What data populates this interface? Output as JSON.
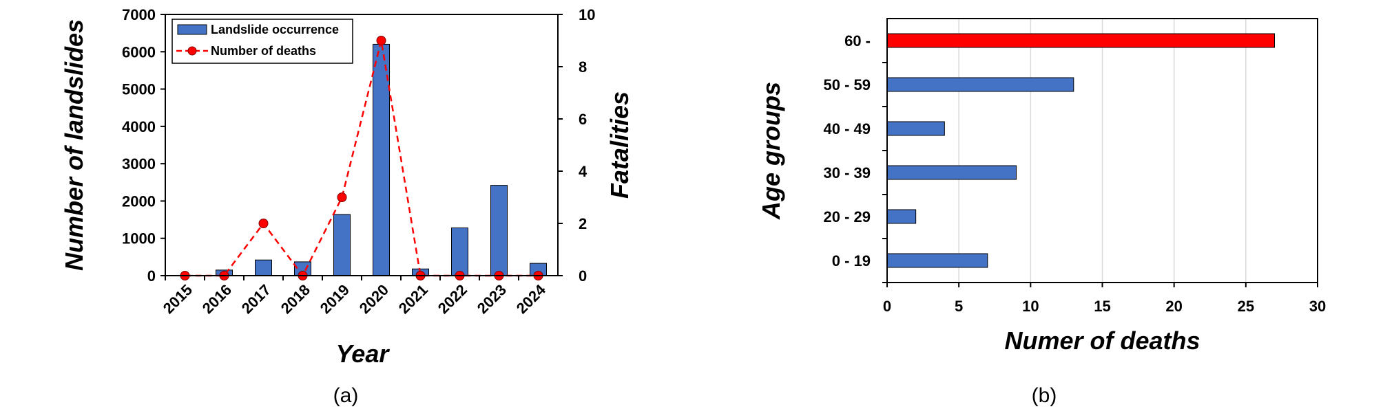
{
  "chart_data": [
    {
      "type": "bar+line",
      "caption": "(a)",
      "categories": [
        "2015",
        "2016",
        "2017",
        "2018",
        "2019",
        "2020",
        "2021",
        "2022",
        "2023",
        "2024"
      ],
      "series": [
        {
          "name": "Landslide occurrence",
          "kind": "bar",
          "axis": "left",
          "color": "#4472c4",
          "values": [
            10,
            150,
            420,
            370,
            1640,
            6200,
            180,
            1280,
            2420,
            330
          ]
        },
        {
          "name": "Number of deaths",
          "kind": "line",
          "axis": "right",
          "color": "#ff0000",
          "values": [
            0,
            0,
            2,
            0,
            3,
            9,
            0,
            0,
            0,
            0
          ]
        }
      ],
      "xlabel": "Year",
      "ylabel": "Number of landslides",
      "y2label": "Fatalities",
      "ylim": [
        0,
        7000
      ],
      "y2lim": [
        0,
        10
      ],
      "yticks": [
        "0",
        "1000",
        "2000",
        "3000",
        "4000",
        "5000",
        "6000",
        "7000"
      ],
      "y2ticks": [
        "0",
        "2",
        "4",
        "6",
        "8",
        "10"
      ],
      "legend_position": "top-left"
    },
    {
      "type": "bar",
      "orientation": "horizontal",
      "caption": "(b)",
      "categories": [
        "0 - 19",
        "20 - 29",
        "30 - 39",
        "40 - 49",
        "50 - 59",
        "60 -"
      ],
      "values": [
        7,
        2,
        9,
        4,
        13,
        27
      ],
      "colors": [
        "#4472c4",
        "#4472c4",
        "#4472c4",
        "#4472c4",
        "#4472c4",
        "#ff0000"
      ],
      "xlabel": "Numer of deaths",
      "ylabel": "Age groups",
      "xlim": [
        0,
        30
      ],
      "xticks": [
        "0",
        "5",
        "10",
        "15",
        "20",
        "25",
        "30"
      ],
      "grid": "vertical"
    }
  ]
}
